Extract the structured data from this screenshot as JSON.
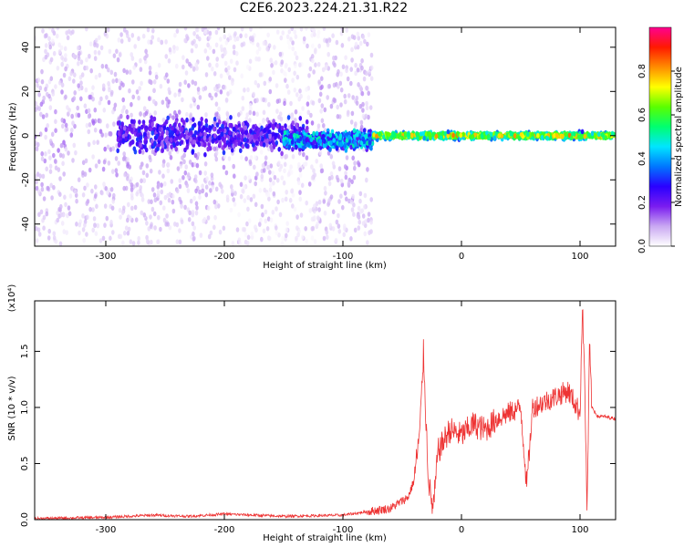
{
  "title": "C2E6.2023.224.21.31.R22",
  "chart_data": [
    {
      "type": "heatmap",
      "xlabel": "Height of straight line (km)",
      "ylabel": "Frequency (Hz)",
      "xlim": [
        -360,
        130
      ],
      "ylim": [
        -50,
        49
      ],
      "xticks": [
        -300,
        -200,
        -100,
        0,
        100
      ],
      "yticks": [
        -40,
        -20,
        0,
        20,
        40
      ],
      "colorbar": {
        "label": "Normalized spectral amplitude",
        "range": [
          0.0,
          1.0
        ],
        "ticks": [
          "0.0",
          "0.2",
          "0.4",
          "0.6",
          "0.8"
        ],
        "colormap": [
          "#ffffff",
          "#c9a8f2",
          "#7a1cf0",
          "#2a00ff",
          "#0077ff",
          "#00e5ff",
          "#00ff70",
          "#5aff00",
          "#ffff00",
          "#ff8c00",
          "#ff1a00",
          "#ff0090"
        ]
      },
      "features": [
        {
          "x_range": [
            -360,
            -75
          ],
          "center_freq": 0,
          "spread_hz": 49,
          "amplitude": 0.1
        },
        {
          "x_range": [
            -290,
            -130
          ],
          "center_freq": 0,
          "spread_hz": 10,
          "amplitude": 0.25
        },
        {
          "x_range": [
            -150,
            -75
          ],
          "center_freq": -2,
          "spread_hz": 5,
          "amplitude": 0.4
        },
        {
          "x_range": [
            -75,
            130
          ],
          "center_freq": 0,
          "spread_hz": 2,
          "amplitude": 0.85
        }
      ]
    },
    {
      "type": "line",
      "xlabel": "Height of straight line (km)",
      "ylabel": "SNR (10 * v/v)",
      "y_multiplier": "(x10⁴)",
      "xlim": [
        -360,
        130
      ],
      "ylim": [
        0,
        1.95
      ],
      "xticks": [
        -300,
        -200,
        -100,
        0,
        100
      ],
      "yticks": [
        "0.0",
        "0.5",
        "1.0",
        "1.5"
      ],
      "series": [
        {
          "color": "#ee3333",
          "x": [
            -360,
            -300,
            -260,
            -230,
            -200,
            -150,
            -100,
            -80,
            -60,
            -45,
            -40,
            -35,
            -32,
            -30,
            -28,
            -26,
            -24,
            -22,
            -20,
            -15,
            -10,
            0,
            10,
            20,
            30,
            40,
            50,
            55,
            60,
            70,
            80,
            90,
            100,
            102,
            104,
            106,
            108,
            110,
            115,
            120,
            130
          ],
          "y": [
            0.01,
            0.02,
            0.04,
            0.03,
            0.05,
            0.03,
            0.04,
            0.07,
            0.1,
            0.2,
            0.35,
            0.8,
            1.5,
            0.9,
            0.4,
            0.2,
            0.1,
            0.3,
            0.6,
            0.7,
            0.8,
            0.75,
            0.85,
            0.8,
            0.9,
            0.95,
            1.0,
            0.3,
            1.0,
            1.05,
            1.1,
            1.15,
            0.95,
            1.9,
            1.2,
            0.05,
            1.55,
            1.0,
            0.92,
            0.92,
            0.9
          ]
        }
      ]
    }
  ]
}
